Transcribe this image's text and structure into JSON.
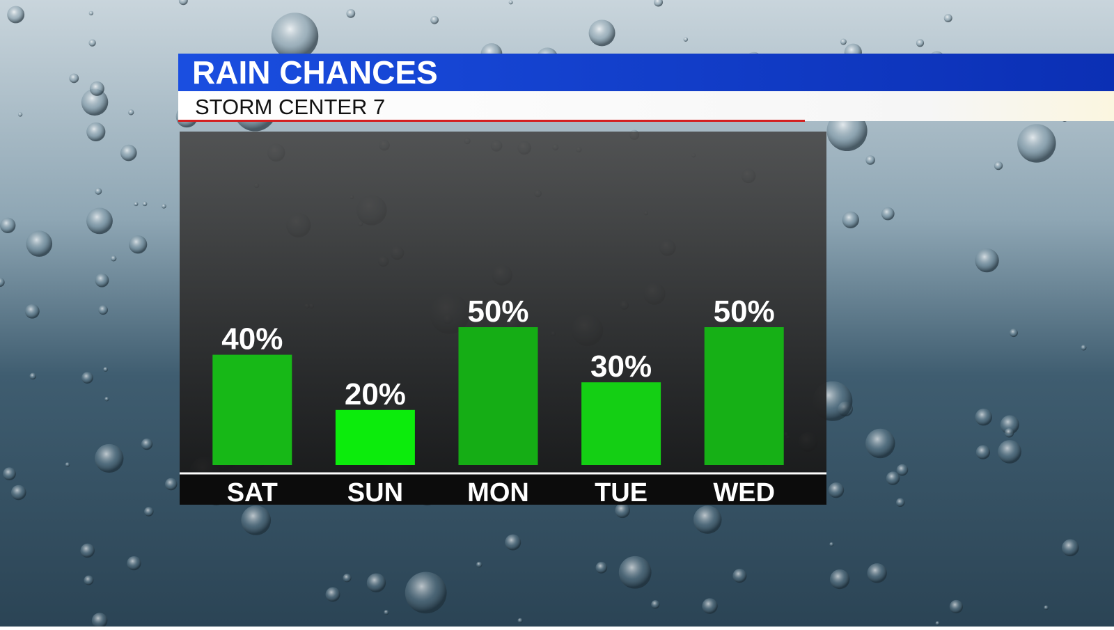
{
  "chart_data": {
    "type": "bar",
    "title": "RAIN CHANCES",
    "subtitle": "STORM CENTER 7",
    "categories": [
      "SAT",
      "SUN",
      "MON",
      "TUE",
      "WED"
    ],
    "values": [
      40,
      20,
      50,
      30,
      50
    ],
    "value_labels": [
      "40%",
      "20%",
      "50%",
      "30%",
      "50%"
    ],
    "colors": [
      "#17b817",
      "#0cec0c",
      "#15ad15",
      "#14cf14",
      "#16b016"
    ]
  }
}
